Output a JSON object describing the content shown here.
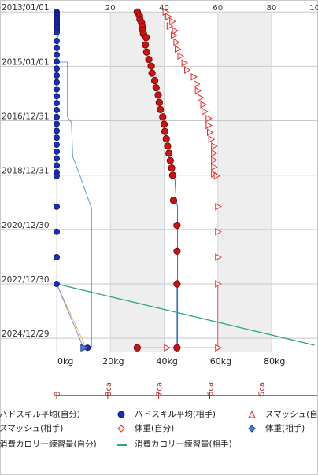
{
  "chart_data": {
    "type": "scatter",
    "y_tick_labels": [
      "2013/01/01",
      "2015/01/01",
      "2016/12/31",
      "2018/12/31",
      "2020/12/30",
      "2022/12/30",
      "2024/12/29"
    ],
    "x_top_tick_labels": [
      "20",
      "40",
      "60",
      "80",
      "10"
    ],
    "x_bottom_tick_labels": [
      "0kg",
      "20kg",
      "40kg",
      "60kg",
      "80kg"
    ],
    "cal_tick_labels": [
      "0",
      "8cal",
      "7cal",
      "6cal",
      "5cal"
    ],
    "xlim": [
      0,
      97
    ],
    "legend": [
      "バドスキル平均(自分)",
      "バドスキル平均(相手)",
      "スマッシュ(自",
      "スマッシュ(相手)",
      "体重(自分)",
      "体重(相手)",
      "消費カロリー練習量(自分)",
      "消費カロリー練習量(相手)"
    ],
    "colors": {
      "blue_series": "#1a2fb5",
      "red_series": "#cc1111",
      "smash_series": "#e03030",
      "weight_self_line": "#5aa0e0",
      "weight_opp_line": "#3070c8",
      "calorie_self_line": "#f0c060",
      "calorie_opp_line": "#2aa87a",
      "band": "#eeeeee"
    },
    "date_range": [
      "2012-12-30",
      "2025-07-05"
    ],
    "series": [
      {
        "name": "バドスキル平均(相手)",
        "marker": "dot-blue",
        "points": [
          [
            "2013-01-01",
            0
          ],
          [
            "2013-01-22",
            0
          ],
          [
            "2013-02-12",
            0
          ],
          [
            "2013-03-05",
            0
          ],
          [
            "2013-03-26",
            0
          ],
          [
            "2013-04-16",
            0
          ],
          [
            "2013-05-07",
            0
          ],
          [
            "2013-05-28",
            0
          ],
          [
            "2013-06-18",
            0
          ],
          [
            "2013-07-09",
            0
          ],
          [
            "2013-07-30",
            0
          ],
          [
            "2013-08-20",
            0
          ],
          [
            "2013-09-10",
            0
          ],
          [
            "2013-10-01",
            0
          ],
          [
            "2014-01-25",
            0
          ],
          [
            "2014-04-27",
            0
          ],
          [
            "2014-07-29",
            0
          ],
          [
            "2014-10-30",
            0
          ],
          [
            "2015-01-31",
            0
          ],
          [
            "2015-05-04",
            0
          ],
          [
            "2015-08-04",
            0
          ],
          [
            "2015-11-05",
            0
          ],
          [
            "2016-02-06",
            0
          ],
          [
            "2016-05-09",
            0
          ],
          [
            "2016-08-10",
            0
          ],
          [
            "2016-11-11",
            0
          ],
          [
            "2017-02-12",
            0
          ],
          [
            "2017-05-16",
            0
          ],
          [
            "2017-08-17",
            0
          ],
          [
            "2017-11-18",
            0
          ],
          [
            "2018-02-19",
            0
          ],
          [
            "2018-05-22",
            0
          ],
          [
            "2018-08-23",
            0
          ],
          [
            "2018-11-24",
            0
          ],
          [
            "2019-01-10",
            0
          ],
          [
            "2020-02-27",
            0
          ],
          [
            "2021-01-30",
            0
          ],
          [
            "2022-01-05",
            0
          ],
          [
            "2022-12-30",
            0
          ],
          [
            "2025-05-05",
            11.5
          ]
        ]
      },
      {
        "name": "バドスキル平均(自分)",
        "marker": "dot-red",
        "points": [
          [
            "2013-01-01",
            30
          ],
          [
            "2013-02-18",
            30.8
          ],
          [
            "2013-04-09",
            31
          ],
          [
            "2013-05-28",
            31.6
          ],
          [
            "2013-07-16",
            31.8
          ],
          [
            "2013-09-03",
            32
          ],
          [
            "2013-10-23",
            32.3
          ],
          [
            "2013-12-11",
            33.3
          ],
          [
            "2014-03-18",
            33
          ],
          [
            "2014-06-24",
            33.5
          ],
          [
            "2014-09-30",
            34.3
          ],
          [
            "2014-12-30",
            35.2
          ],
          [
            "2015-04-04",
            35.5
          ],
          [
            "2015-07-11",
            36.5
          ],
          [
            "2015-10-16",
            37
          ],
          [
            "2016-01-22",
            37.8
          ],
          [
            "2016-04-29",
            38.2
          ],
          [
            "2016-08-04",
            38.6
          ],
          [
            "2016-11-10",
            39.5
          ],
          [
            "2017-02-16",
            40
          ],
          [
            "2017-05-25",
            40.3
          ],
          [
            "2017-08-30",
            40.8
          ],
          [
            "2017-12-06",
            41.3
          ],
          [
            "2018-03-14",
            41.8
          ],
          [
            "2018-06-20",
            42.3
          ],
          [
            "2018-09-26",
            42.8
          ],
          [
            "2019-01-02",
            43.2
          ],
          [
            "2019-12-05",
            43.5
          ],
          [
            "2020-11-05",
            44.8
          ],
          [
            "2021-10-16",
            44.8
          ],
          [
            "2022-12-30",
            44.8
          ],
          [
            "2025-05-05",
            44.8
          ],
          [
            "2025-05-05",
            30
          ]
        ]
      },
      {
        "name": "スマッシュ(自分)",
        "marker": "triangle-red",
        "points": [
          [
            "2013-01-01",
            40.5
          ],
          [
            "2013-03-05",
            41.5
          ],
          [
            "2013-05-07",
            43
          ],
          [
            "2013-07-09",
            42
          ],
          [
            "2013-09-10",
            44
          ],
          [
            "2013-11-11",
            43.5
          ],
          [
            "2014-02-12",
            44.5
          ],
          [
            "2014-05-16",
            45
          ],
          [
            "2014-08-17",
            46
          ],
          [
            "2014-11-18",
            47.5
          ],
          [
            "2015-02-19",
            48.5
          ],
          [
            "2015-05-23",
            51
          ],
          [
            "2015-08-24",
            52
          ],
          [
            "2015-11-25",
            52.5
          ],
          [
            "2016-02-26",
            53.5
          ],
          [
            "2016-05-29",
            54.5
          ],
          [
            "2016-08-30",
            55
          ],
          [
            "2016-12-01",
            56.5
          ],
          [
            "2017-03-04",
            56.5
          ],
          [
            "2017-06-05",
            57
          ],
          [
            "2017-09-06",
            57.5
          ],
          [
            "2017-12-08",
            58.5
          ],
          [
            "2018-03-11",
            58.5
          ],
          [
            "2018-06-12",
            58.5
          ],
          [
            "2018-09-13",
            58.5
          ],
          [
            "2018-12-15",
            58.5
          ],
          [
            "2019-01-10",
            59.5
          ],
          [
            "2020-02-27",
            60
          ],
          [
            "2021-01-30",
            60
          ],
          [
            "2022-01-05",
            60
          ],
          [
            "2022-12-30",
            60
          ],
          [
            "2025-05-05",
            60
          ],
          [
            "2025-05-05",
            41
          ]
        ]
      },
      {
        "name": "体重(自分)",
        "marker": "line",
        "points": [
          [
            "2013-01-01",
            0.5
          ],
          [
            "2014-11-05",
            0.5
          ],
          [
            "2014-11-05",
            4
          ],
          [
            "2016-11-11",
            4
          ],
          [
            "2017-01-20",
            5.5
          ],
          [
            "2018-05-01",
            6
          ],
          [
            "2018-10-30",
            8
          ],
          [
            "2019-09-01",
            11
          ],
          [
            "2020-03-20",
            13
          ],
          [
            "2020-03-20",
            13
          ],
          [
            "2025-04-25",
            13
          ],
          [
            "2025-05-05",
            12
          ]
        ]
      },
      {
        "name": "体重(相手)",
        "marker": "line",
        "points": [
          [
            "2019-02-20",
            44
          ],
          [
            "2019-12-05",
            44.5
          ],
          [
            "2020-03-01",
            45
          ],
          [
            "2025-05-05",
            45
          ]
        ]
      },
      {
        "name": "消費カロリー練習量(相手)",
        "marker": "line",
        "points": [
          [
            "2022-12-30",
            0
          ],
          [
            "2025-04-01",
            96
          ]
        ]
      }
    ]
  }
}
